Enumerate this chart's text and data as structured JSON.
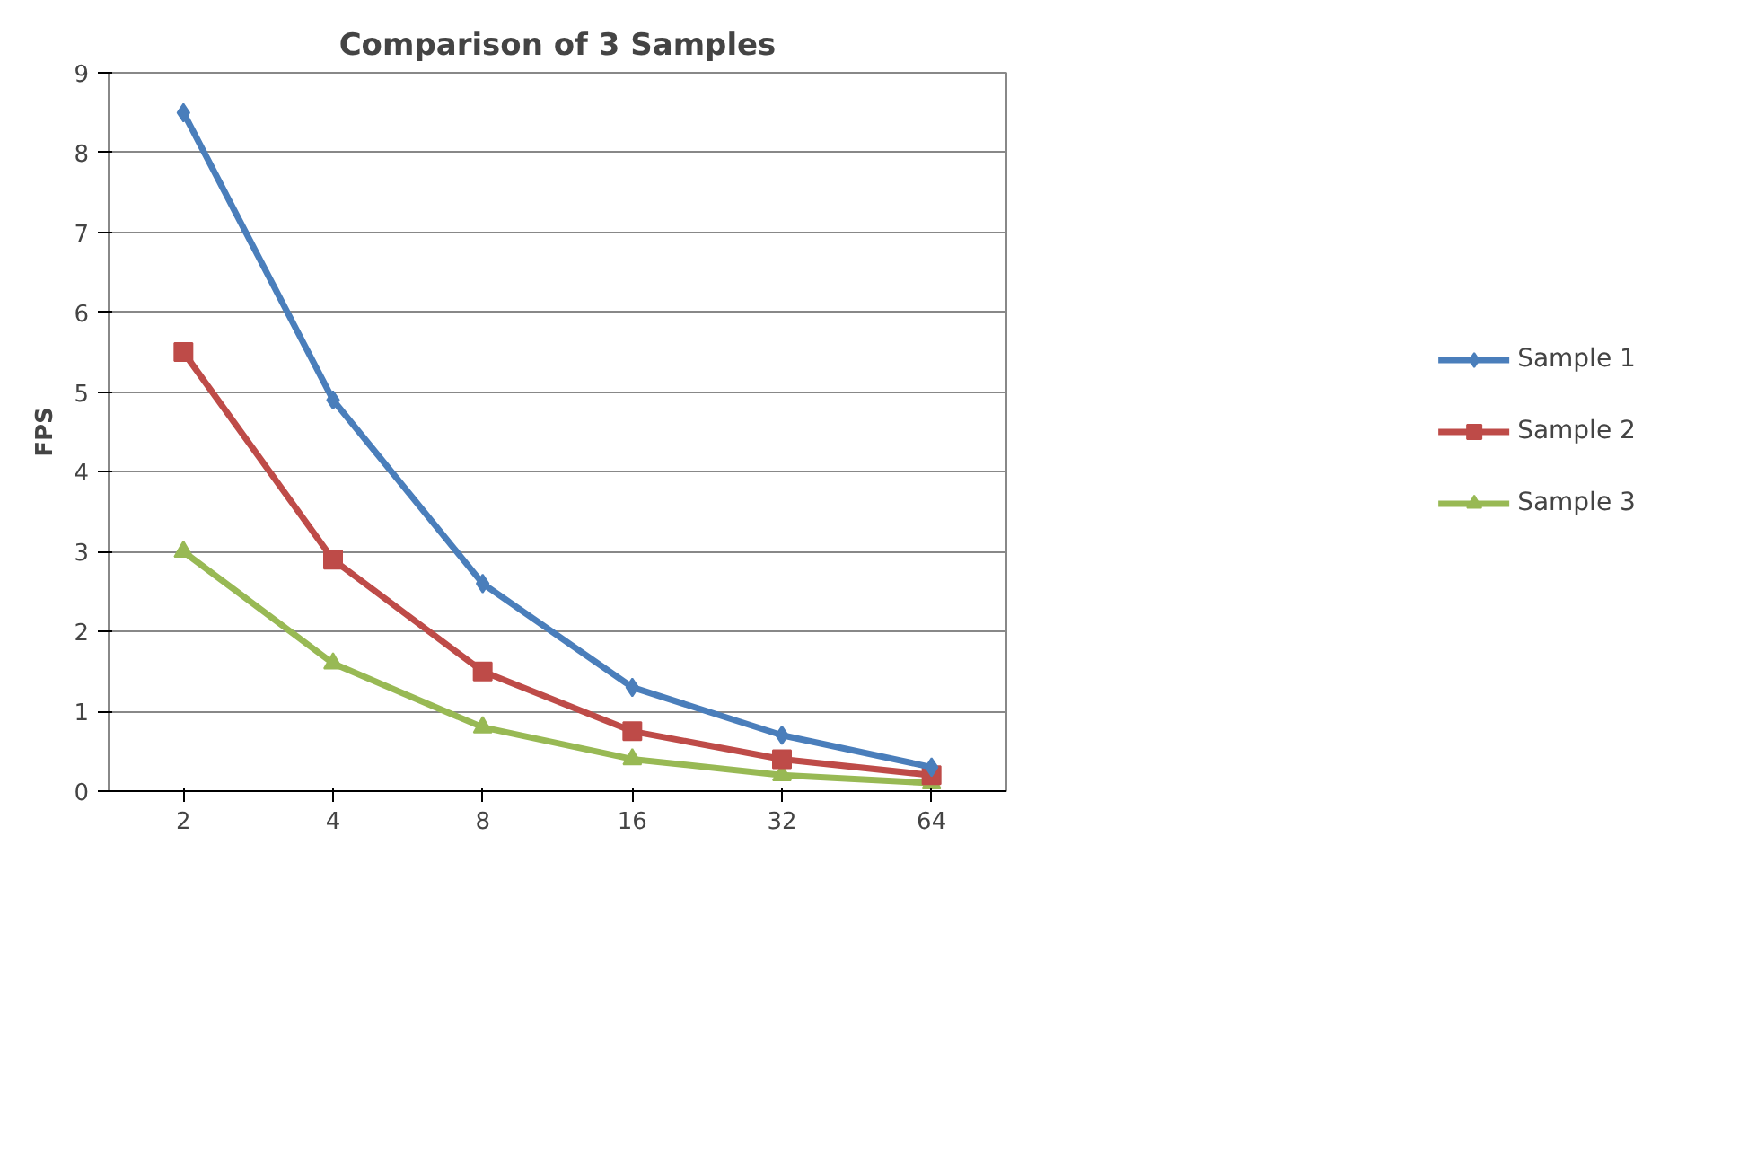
{
  "chart_data": {
    "type": "line",
    "title": "Comparison of 3 Samples",
    "ylabel": "FPS",
    "categories": [
      "2",
      "4",
      "8",
      "16",
      "32",
      "64"
    ],
    "series": [
      {
        "name": "Sample 1",
        "color": "#4a7ebb",
        "marker": "diamond",
        "values": [
          8.5,
          4.9,
          2.6,
          1.3,
          0.7,
          0.3
        ]
      },
      {
        "name": "Sample 2",
        "color": "#be4b48",
        "marker": "square",
        "values": [
          5.5,
          2.9,
          1.5,
          0.75,
          0.4,
          0.2
        ]
      },
      {
        "name": "Sample 3",
        "color": "#98b954",
        "marker": "triangle",
        "values": [
          3.0,
          1.6,
          0.8,
          0.4,
          0.2,
          0.1
        ]
      }
    ],
    "ylim": [
      0,
      9
    ],
    "yticks": [
      0,
      1,
      2,
      3,
      4,
      5,
      6,
      7,
      8,
      9
    ],
    "grid": "y",
    "legend": "right"
  }
}
